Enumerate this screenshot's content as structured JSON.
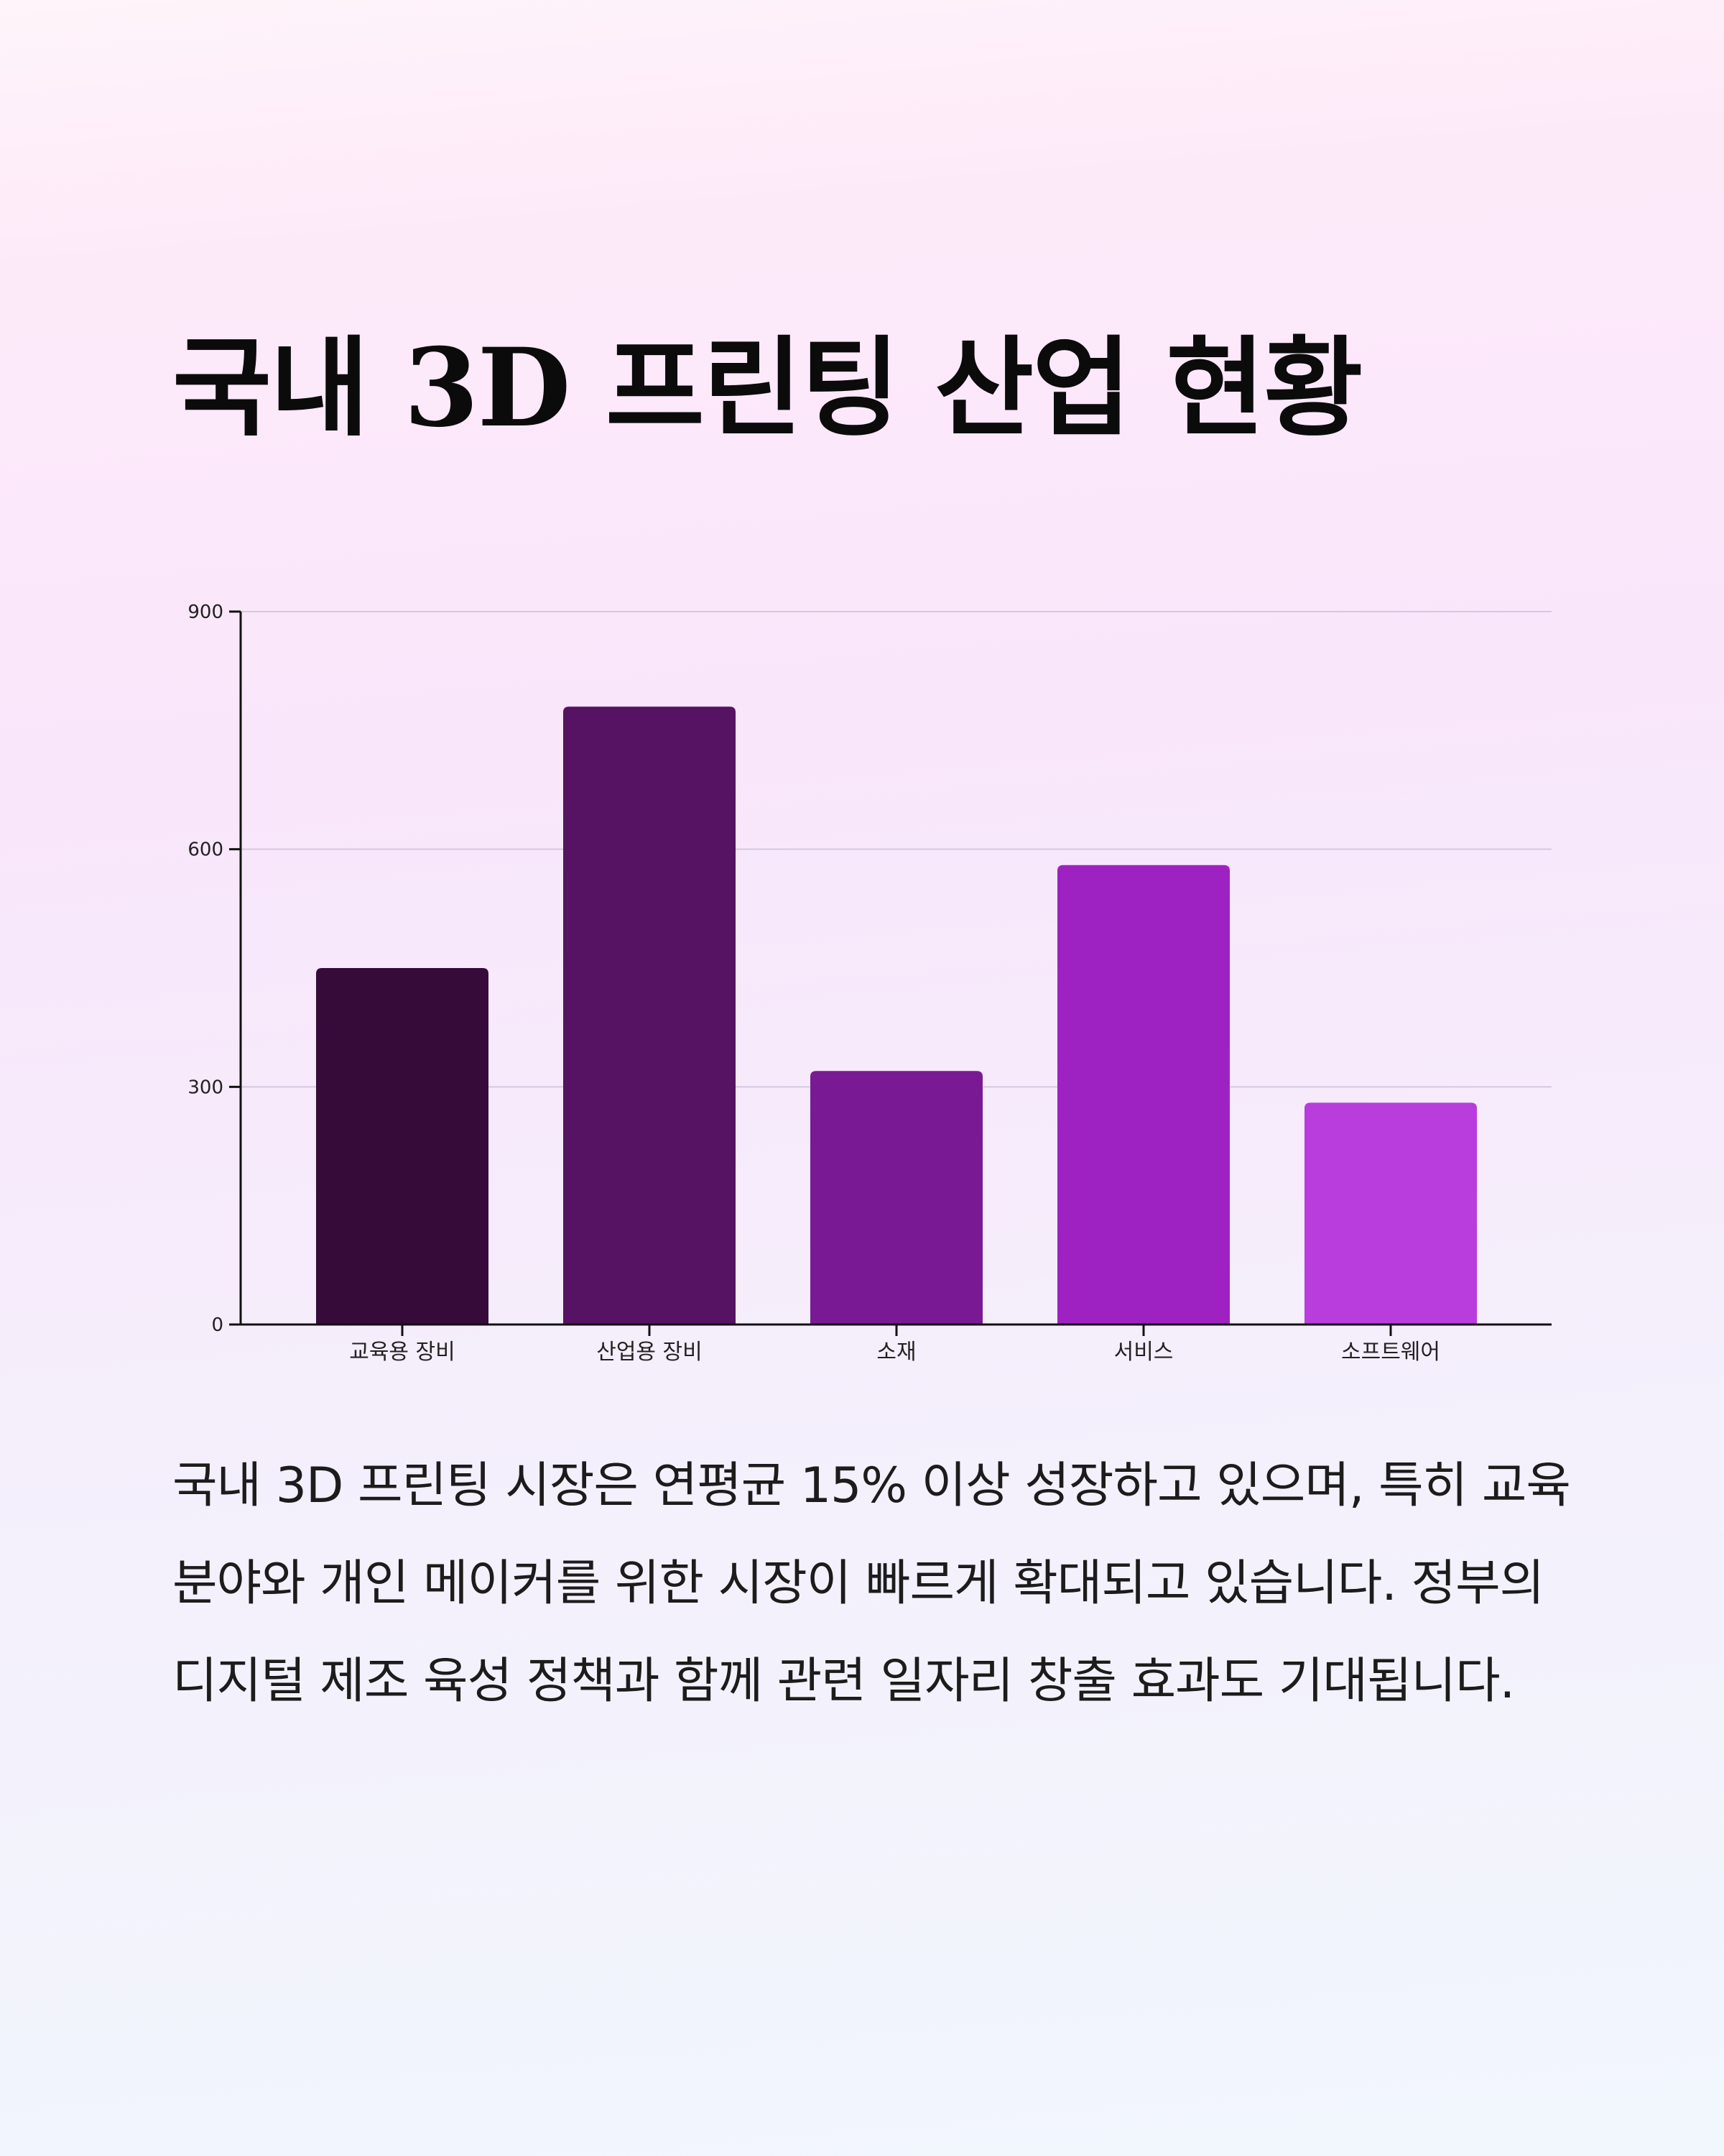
{
  "title": "국내 3D 프린팅 산업 현황",
  "description": "국내 3D 프린팅 시장은 연평균 15% 이상 성장하고 있으며, 특히 교육 분야와 개인 메이커를 위한 시장이 빠르게 확대되고 있습니다. 정부의 디지털 제조 육성 정책과 함께 관련 일자리 창출 효과도 기대됩니다.",
  "chart_data": {
    "type": "bar",
    "categories": [
      "교육용 장비",
      "산업용 장비",
      "소재",
      "서비스",
      "소프트웨어"
    ],
    "values": [
      450,
      780,
      320,
      580,
      280
    ],
    "colors": [
      "#360b3a",
      "#561263",
      "#791a94",
      "#9e22c2",
      "#b83ddc"
    ],
    "title": "",
    "xlabel": "",
    "ylabel": "",
    "ylim": [
      0,
      900
    ],
    "yticks": [
      0,
      300,
      600,
      900
    ],
    "grid": true,
    "legend": "none"
  }
}
